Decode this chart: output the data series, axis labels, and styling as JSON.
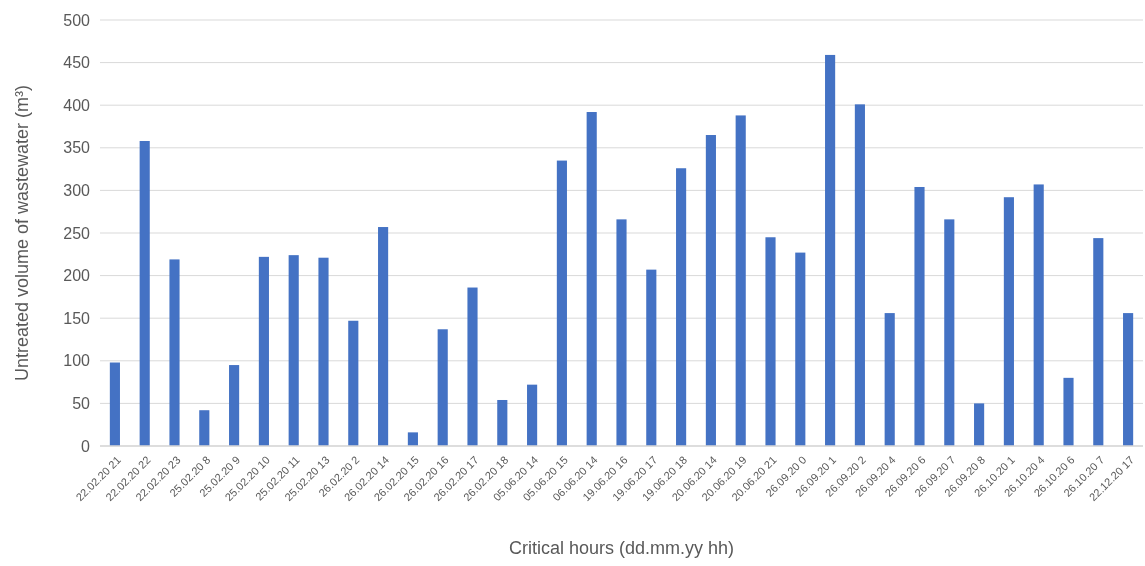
{
  "chart_data": {
    "type": "bar",
    "xlabel": "Critical hours (dd.mm.yy hh)",
    "ylabel": "Untreated volume of wastewater (m³)",
    "categories": [
      "22.02.20 21",
      "22.02.20 22",
      "22.02.20 23",
      "25.02.20 8",
      "25.02.20 9",
      "25.02.20 10",
      "25.02.20 11",
      "25.02.20 13",
      "26.02.20 2",
      "26.02.20 14",
      "26.02.20 15",
      "26.02.20 16",
      "26.02.20 17",
      "26.02.20 18",
      "05.06.20 14",
      "05.06.20 15",
      "06.06.20 14",
      "19.06.20 16",
      "19.06.20 17",
      "19.06.20 18",
      "20.06.20 14",
      "20.06.20 19",
      "20.06.20 21",
      "26.09.20 0",
      "26.09.20 1",
      "26.09.20 2",
      "26.09.20 4",
      "26.09.20 6",
      "26.09.20 7",
      "26.09.20 8",
      "26.10.20 1",
      "26.10.20 4",
      "26.10.20 6",
      "26.10.20 7",
      "22.12.20 17"
    ],
    "values": [
      98,
      358,
      219,
      42,
      95,
      222,
      224,
      221,
      147,
      257,
      16,
      137,
      186,
      54,
      72,
      335,
      392,
      266,
      207,
      326,
      365,
      388,
      245,
      227,
      459,
      401,
      156,
      304,
      266,
      50,
      292,
      307,
      80,
      244,
      156
    ],
    "color": "#4472c4",
    "ylim": [
      0,
      500
    ],
    "yticks": [
      0,
      50,
      100,
      150,
      200,
      250,
      300,
      350,
      400,
      450,
      500
    ],
    "grid": "y"
  }
}
